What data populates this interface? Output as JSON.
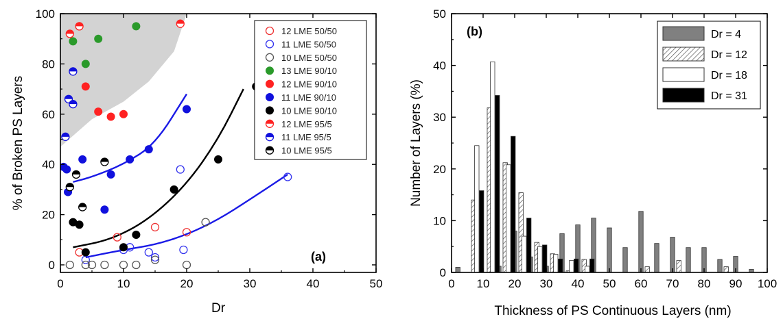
{
  "chart_data": [
    {
      "type": "scatter",
      "panel_label": "(a)",
      "xlabel": "Dr",
      "ylabel": "% of Broken PS Layers",
      "xlim": [
        0,
        50
      ],
      "ylim": [
        -3,
        100
      ],
      "xticks": [
        0,
        10,
        20,
        30,
        40,
        50
      ],
      "yticks": [
        0,
        20,
        40,
        60,
        80,
        100
      ],
      "legend_position": "top-right",
      "series": [
        {
          "name": "12 LME 50/50",
          "color": "#e33",
          "marker": "open",
          "points": [
            [
              3,
              5
            ],
            [
              9,
              11
            ],
            [
              15,
              15
            ],
            [
              20,
              13
            ]
          ]
        },
        {
          "name": "11 LME 50/50",
          "color": "#33e",
          "marker": "open",
          "points": [
            [
              4,
              2
            ],
            [
              10,
              6
            ],
            [
              11,
              7
            ],
            [
              14,
              5
            ],
            [
              15,
              3
            ],
            [
              19,
              38
            ],
            [
              19.5,
              6
            ],
            [
              36,
              35
            ]
          ]
        },
        {
          "name": "10 LME 50/50",
          "color": "#555",
          "marker": "open",
          "points": [
            [
              1.5,
              0
            ],
            [
              4,
              0
            ],
            [
              5,
              0
            ],
            [
              7,
              0
            ],
            [
              10,
              0
            ],
            [
              12,
              0
            ],
            [
              15,
              2
            ],
            [
              20,
              0
            ],
            [
              23,
              17
            ]
          ]
        },
        {
          "name": "13 LME 90/10",
          "color": "#2a9a2a",
          "marker": "filled",
          "points": [
            [
              2,
              89
            ],
            [
              3,
              95
            ],
            [
              4,
              80
            ],
            [
              6,
              90
            ],
            [
              12,
              95
            ]
          ]
        },
        {
          "name": "12 LME 90/10",
          "color": "#f22",
          "marker": "filled",
          "points": [
            [
              4,
              71
            ],
            [
              6,
              61
            ],
            [
              8,
              59
            ],
            [
              10,
              60
            ]
          ]
        },
        {
          "name": "11 LME 90/10",
          "color": "#11d",
          "marker": "filled",
          "points": [
            [
              0.5,
              39
            ],
            [
              1,
              38
            ],
            [
              1.2,
              29
            ],
            [
              3.5,
              42
            ],
            [
              7,
              22
            ],
            [
              8,
              36
            ],
            [
              11,
              42
            ],
            [
              14,
              46
            ],
            [
              20,
              62
            ]
          ]
        },
        {
          "name": "10 LME 90/10",
          "color": "#000",
          "marker": "filled",
          "points": [
            [
              2,
              17
            ],
            [
              3,
              16
            ],
            [
              4,
              5
            ],
            [
              10,
              7
            ],
            [
              12,
              12
            ],
            [
              18,
              30
            ],
            [
              25,
              42
            ],
            [
              31,
              71
            ]
          ]
        },
        {
          "name": "12 LME 95/5",
          "color": "#f22",
          "marker": "half",
          "points": [
            [
              1.5,
              92
            ],
            [
              3,
              95
            ],
            [
              19,
              96
            ]
          ]
        },
        {
          "name": "11 LME 95/5",
          "color": "#11d",
          "marker": "half",
          "points": [
            [
              0.8,
              51
            ],
            [
              1.3,
              66
            ],
            [
              2,
              77
            ],
            [
              2,
              64
            ]
          ]
        },
        {
          "name": "10 LME 95/5",
          "color": "#000",
          "marker": "half",
          "points": [
            [
              1.5,
              31
            ],
            [
              2.5,
              36
            ],
            [
              3.5,
              23
            ],
            [
              7,
              41
            ]
          ]
        }
      ],
      "trend_lines": [
        {
          "color": "#1a1ae6",
          "points": [
            [
              2,
              33
            ],
            [
              5,
              35
            ],
            [
              10,
              40
            ],
            [
              15,
              48
            ],
            [
              20,
              68
            ]
          ]
        },
        {
          "color": "#000",
          "points": [
            [
              2,
              7
            ],
            [
              8,
              10
            ],
            [
              14,
              18
            ],
            [
              20,
              32
            ],
            [
              25,
              50
            ],
            [
              29,
              70
            ]
          ]
        },
        {
          "color": "#1a1ae6",
          "points": [
            [
              4,
              3
            ],
            [
              10,
              6
            ],
            [
              15,
              8
            ],
            [
              20,
              12
            ],
            [
              25,
              18
            ],
            [
              30,
              26
            ],
            [
              36,
              36
            ]
          ]
        }
      ],
      "shaded_region": {
        "color": "#d3d3d3",
        "description_points": [
          [
            0,
            100
          ],
          [
            20,
            100
          ],
          [
            18,
            85
          ],
          [
            14,
            73
          ],
          [
            10,
            65
          ],
          [
            5,
            58
          ],
          [
            0,
            47
          ]
        ]
      }
    },
    {
      "type": "bar",
      "panel_label": "(b)",
      "xlabel": "Thickness of PS Continuous Layers (nm)",
      "ylabel": "Number of Layers (%)",
      "xlim": [
        0,
        100
      ],
      "ylim": [
        0,
        50
      ],
      "xticks": [
        0,
        10,
        20,
        30,
        40,
        50,
        60,
        70,
        80,
        90,
        100
      ],
      "yticks": [
        0,
        10,
        20,
        30,
        40,
        50
      ],
      "legend_position": "top-right",
      "series": [
        {
          "name": "Dr = 4",
          "fill": "gray",
          "values": [
            [
              2,
              1
            ],
            [
              15,
              1.2
            ],
            [
              20,
              8
            ],
            [
              25,
              3
            ],
            [
              30,
              1.2
            ],
            [
              35,
              7.5
            ],
            [
              40,
              9.2
            ],
            [
              45,
              10.5
            ],
            [
              50,
              8.6
            ],
            [
              55,
              4.8
            ],
            [
              60,
              11.8
            ],
            [
              65,
              5.6
            ],
            [
              70,
              6.8
            ],
            [
              75,
              4.8
            ],
            [
              80,
              4.8
            ],
            [
              85,
              2.5
            ],
            [
              90,
              3.1
            ],
            [
              95,
              0.6
            ]
          ]
        },
        {
          "name": "Dr = 12",
          "fill": "hatched",
          "values": [
            [
              7,
              14
            ],
            [
              12,
              31.8
            ],
            [
              17,
              21.2
            ],
            [
              22,
              15.4
            ],
            [
              27,
              5.8
            ],
            [
              32,
              3.6
            ],
            [
              37,
              0.3
            ],
            [
              42,
              2.5
            ],
            [
              62,
              1.1
            ],
            [
              72,
              2.3
            ],
            [
              87,
              1.1
            ]
          ]
        },
        {
          "name": "Dr = 18",
          "fill": "white",
          "values": [
            [
              8,
              24.5
            ],
            [
              13,
              40.7
            ],
            [
              18,
              20.8
            ],
            [
              23,
              7
            ],
            [
              28,
              5
            ],
            [
              33,
              3.5
            ],
            [
              38,
              2.3
            ],
            [
              43,
              1.2
            ]
          ]
        },
        {
          "name": "Dr = 31",
          "fill": "black",
          "values": [
            [
              9.5,
              15.8
            ],
            [
              14.5,
              34.2
            ],
            [
              19.5,
              26.3
            ],
            [
              24.5,
              10.5
            ],
            [
              29.5,
              5.3
            ],
            [
              34.5,
              2.6
            ],
            [
              39.5,
              2.6
            ],
            [
              44.5,
              2.6
            ]
          ]
        }
      ]
    }
  ]
}
